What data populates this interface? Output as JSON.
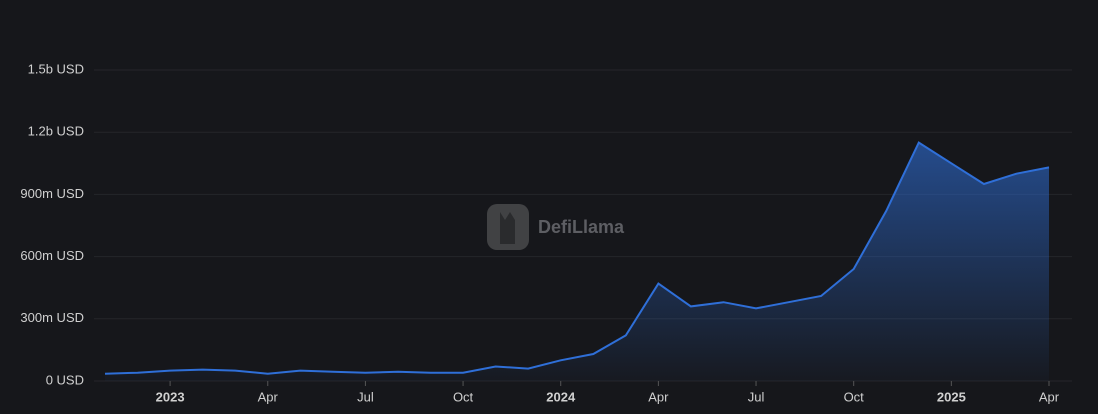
{
  "chart_data": {
    "type": "area",
    "watermark": "DefiLlama",
    "color": "#2f6fd8",
    "x": [
      "2022-11",
      "2022-12",
      "2023-01",
      "2023-02",
      "2023-03",
      "2023-04",
      "2023-05",
      "2023-06",
      "2023-07",
      "2023-08",
      "2023-09",
      "2023-10",
      "2023-11",
      "2023-12",
      "2024-01",
      "2024-02",
      "2024-03",
      "2024-04",
      "2024-05",
      "2024-06",
      "2024-07",
      "2024-08",
      "2024-09",
      "2024-10",
      "2024-11",
      "2024-12",
      "2025-01",
      "2025-02",
      "2025-03",
      "2025-04"
    ],
    "values": [
      35000000,
      40000000,
      50000000,
      55000000,
      50000000,
      35000000,
      50000000,
      45000000,
      40000000,
      45000000,
      40000000,
      40000000,
      70000000,
      60000000,
      100000000,
      130000000,
      220000000,
      470000000,
      360000000,
      380000000,
      350000000,
      380000000,
      410000000,
      540000000,
      820000000,
      1150000000,
      1050000000,
      950000000,
      1000000000,
      1030000000
    ],
    "xlim": [
      "2022-11",
      "2025-04"
    ],
    "xticks": [
      {
        "value": "2023-01",
        "label": "2023"
      },
      {
        "value": "2023-04",
        "label": "Apr"
      },
      {
        "value": "2023-07",
        "label": "Jul"
      },
      {
        "value": "2023-10",
        "label": "Oct"
      },
      {
        "value": "2024-01",
        "label": "2024"
      },
      {
        "value": "2024-04",
        "label": "Apr"
      },
      {
        "value": "2024-07",
        "label": "Jul"
      },
      {
        "value": "2024-10",
        "label": "Oct"
      },
      {
        "value": "2025-01",
        "label": "2025"
      },
      {
        "value": "2025-04",
        "label": "Apr"
      }
    ],
    "ylim": [
      0,
      1500000000
    ],
    "yticks": [
      {
        "value": 0,
        "label": "0 USD"
      },
      {
        "value": 300000000,
        "label": "300m USD"
      },
      {
        "value": 600000000,
        "label": "600m USD"
      },
      {
        "value": 900000000,
        "label": "900m USD"
      },
      {
        "value": 1200000000,
        "label": "1.2b USD"
      },
      {
        "value": 1500000000,
        "label": "1.5b USD"
      }
    ],
    "grid": true
  }
}
